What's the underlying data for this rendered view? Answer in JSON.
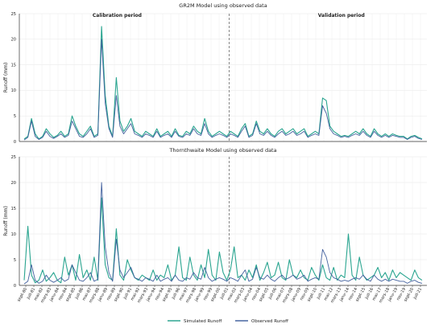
{
  "chart_data": [
    {
      "type": "line",
      "title": "GR2M Model using observed data",
      "xlabel": "",
      "ylabel": "Runoff (mm)",
      "ylim": [
        0,
        25
      ],
      "yticks": [
        0,
        5,
        10,
        15,
        20,
        25
      ],
      "grid": true,
      "annotations": [
        "Calibration period",
        "Validation period"
      ],
      "split_date": "2006-06",
      "series": [
        {
          "label": "Simulated Runoff",
          "color": "#1fa08a",
          "values": [
            0.5,
            1,
            4.5,
            1.5,
            0.5,
            1,
            2.5,
            1.5,
            0.8,
            1.2,
            2,
            1,
            1.5,
            5,
            3,
            1.5,
            1,
            2,
            3,
            1,
            1.5,
            22.5,
            9,
            3,
            1,
            12.5,
            4,
            2,
            3,
            4.5,
            2,
            1.5,
            1,
            2,
            1.5,
            1,
            2.5,
            1,
            1.5,
            2,
            1,
            2.5,
            1.2,
            1,
            2,
            1.5,
            3,
            2,
            1.5,
            4.5,
            2,
            1,
            1.5,
            2,
            1.5,
            1,
            2,
            1.5,
            1,
            2.5,
            3.5,
            1,
            1.5,
            4,
            2,
            1.5,
            2.5,
            1.5,
            1,
            2,
            2.5,
            1.5,
            2,
            2.5,
            1.5,
            2,
            2.5,
            1,
            1.5,
            2,
            1.5,
            8.5,
            8,
            3,
            2,
            1.5,
            1,
            1.2,
            1,
            1.5,
            2,
            1.5,
            2.5,
            1.5,
            1,
            2.5,
            1.5,
            1,
            1.5,
            1,
            1.5,
            1.2,
            1,
            1,
            0.5,
            1,
            1.2,
            0.8,
            0.5
          ]
        },
        {
          "label": "Observed Runoff",
          "color": "#3a5a9a",
          "values": [
            0.3,
            0.8,
            4,
            1,
            0.4,
            0.8,
            2,
            1,
            0.6,
            1,
            1.5,
            0.8,
            1.2,
            4,
            2.5,
            1,
            0.8,
            1.5,
            2.5,
            0.8,
            1.2,
            20,
            7.5,
            2.5,
            0.8,
            9,
            3,
            1.5,
            2.5,
            3.5,
            1.5,
            1.2,
            0.8,
            1.5,
            1.2,
            0.8,
            2,
            0.8,
            1.2,
            1.5,
            0.8,
            2,
            1,
            0.8,
            1.5,
            1.2,
            2.5,
            1.5,
            1.2,
            3.5,
            1.5,
            0.8,
            1.2,
            1.5,
            1.2,
            0.8,
            1.5,
            1.2,
            0.8,
            2,
            3,
            0.8,
            1.2,
            3.5,
            1.5,
            1.2,
            2,
            1.2,
            0.8,
            1.5,
            2,
            1.2,
            1.5,
            2,
            1.2,
            1.5,
            2,
            0.8,
            1.2,
            1.5,
            1.2,
            7,
            5.5,
            2.5,
            1.5,
            1.2,
            0.8,
            1,
            0.8,
            1.2,
            1.5,
            1.2,
            2,
            1.2,
            0.8,
            2,
            1.2,
            0.8,
            1.2,
            0.8,
            1.2,
            1,
            0.8,
            0.8,
            0.4,
            0.8,
            1,
            0.6,
            0.4
          ]
        }
      ]
    },
    {
      "type": "line",
      "title": "Thornthwaite Model using observed data",
      "xlabel": "",
      "ylabel": "Runoff (mm)",
      "ylim": [
        0,
        25
      ],
      "yticks": [
        0,
        5,
        10,
        15,
        20,
        25
      ],
      "grid": true,
      "split_date": "2006-06",
      "x_tick_labels": [
        "sept-80",
        "juil-81",
        "mai-82",
        "mars-83",
        "janv-84",
        "nov-84",
        "sept-85",
        "juil-86",
        "mai-87",
        "mars-88",
        "janv-89",
        "nov-89",
        "sept-90",
        "juil-91",
        "mai-92",
        "mars-93",
        "janv-94",
        "nov-94",
        "sept-95",
        "juil-96",
        "mai-97",
        "mars-98",
        "janv-99",
        "nov-99",
        "sept-00",
        "juil-01",
        "mai-02",
        "mars-03",
        "janv-04",
        "nov-04",
        "sept-05",
        "juil-06",
        "mai-07",
        "mars-08",
        "janv-09",
        "nov-09",
        "sept-10",
        "juil-11",
        "mai-12",
        "mars-13",
        "janv-14",
        "nov-14",
        "sept-15",
        "juil-16",
        "mai-17",
        "mars-18",
        "janv-19",
        "nov-19",
        "sept-20",
        "juil-21"
      ],
      "series": [
        {
          "label": "Simulated Runoff",
          "color": "#1fa08a",
          "values": [
            1,
            11.5,
            2,
            0.5,
            1,
            3,
            0.8,
            1.5,
            2.5,
            1,
            0.5,
            5.5,
            2,
            4,
            1,
            6,
            1.5,
            3,
            1,
            5.5,
            1,
            17,
            4,
            1.5,
            1,
            11,
            2,
            1,
            5,
            3,
            1.5,
            1,
            2,
            1.5,
            1,
            3,
            1,
            2,
            1.5,
            4,
            1,
            2,
            7.5,
            1.5,
            1,
            5.5,
            2,
            1,
            4,
            1.5,
            7,
            2,
            1,
            6.5,
            2.5,
            1,
            3,
            7.5,
            1.5,
            2,
            1,
            3,
            1.5,
            4,
            1,
            2.5,
            4.5,
            1.5,
            2,
            4.5,
            1.5,
            1,
            5,
            2,
            1.5,
            3,
            1.5,
            1,
            3.5,
            2,
            1,
            4,
            1.5,
            1,
            3.5,
            1,
            2,
            1.5,
            10,
            2,
            1,
            5.5,
            2,
            1,
            1.5,
            2,
            3.5,
            1.5,
            2.5,
            1,
            3,
            1.5,
            2.5,
            2,
            1.5,
            1,
            3,
            1.5,
            1
          ]
        },
        {
          "label": "Observed Runoff",
          "color": "#3a5a9a",
          "values": [
            0.3,
            0.8,
            4,
            1,
            0.4,
            0.8,
            2,
            1,
            0.6,
            1,
            1.5,
            0.8,
            1.2,
            4,
            2.5,
            1,
            0.8,
            1.5,
            2.5,
            0.8,
            1.2,
            20,
            7.5,
            2.5,
            0.8,
            9,
            3,
            1.5,
            2.5,
            3.5,
            1.5,
            1.2,
            0.8,
            1.5,
            1.2,
            0.8,
            2,
            0.8,
            1.2,
            1.5,
            0.8,
            2,
            1,
            0.8,
            1.5,
            1.2,
            2.5,
            1.5,
            1.2,
            3.5,
            1.5,
            0.8,
            1.2,
            1.5,
            1.2,
            0.8,
            1.5,
            1.2,
            0.8,
            2,
            3,
            0.8,
            1.2,
            3.5,
            1.5,
            1.2,
            2,
            1.2,
            0.8,
            1.5,
            2,
            1.2,
            1.5,
            2,
            1.2,
            1.5,
            2,
            0.8,
            1.2,
            1.5,
            1.2,
            7,
            5.5,
            2.5,
            1.5,
            1.2,
            0.8,
            1,
            0.8,
            1.2,
            1.5,
            1.2,
            2,
            1.2,
            0.8,
            2,
            1.2,
            0.8,
            1.2,
            0.8,
            1.2,
            1,
            0.8,
            0.8,
            0.4,
            0.8,
            1,
            0.6,
            0.4
          ]
        }
      ]
    }
  ],
  "legend": {
    "position": "bottom-center",
    "items": [
      {
        "label": "Simulated Runoff",
        "color": "#1fa08a"
      },
      {
        "label": "Observed Runoff",
        "color": "#3a5a9a"
      }
    ]
  }
}
